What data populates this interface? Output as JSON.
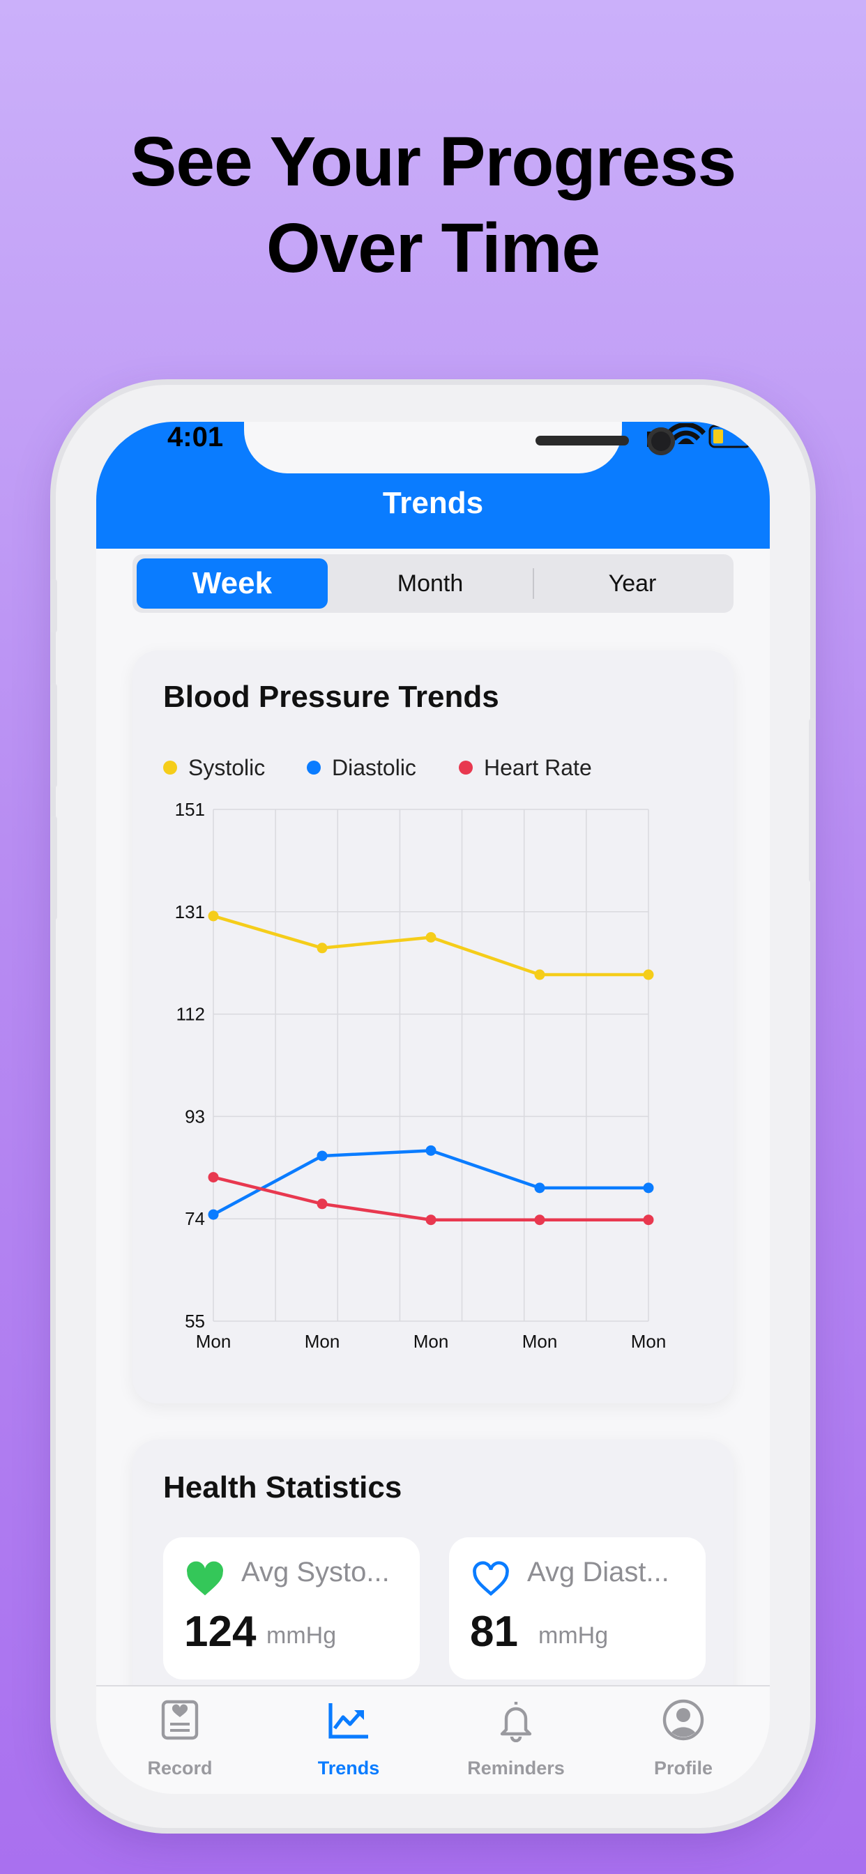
{
  "headline": {
    "line1": "See Your Progress",
    "line2": "Over Time"
  },
  "status_bar": {
    "time": "4:01"
  },
  "nav": {
    "title": "Trends"
  },
  "segmented": {
    "options": [
      "Week",
      "Month",
      "Year"
    ],
    "selected": "Week"
  },
  "trend_card": {
    "title": "Blood Pressure Trends",
    "legend": [
      {
        "label": "Systolic",
        "color": "#f5cd1a"
      },
      {
        "label": "Diastolic",
        "color": "#0a7cff"
      },
      {
        "label": "Heart Rate",
        "color": "#e8384f"
      }
    ]
  },
  "chart_data": {
    "type": "line",
    "title": "Blood Pressure Trends",
    "xlabel": "",
    "ylabel": "",
    "categories": [
      "Mon",
      "Mon",
      "Mon",
      "Mon",
      "Mon"
    ],
    "ylim": [
      55,
      151
    ],
    "yticks": [
      "151",
      "131",
      "112",
      "93",
      "74",
      "55"
    ],
    "grid": true,
    "legend_position": "top-left",
    "series": [
      {
        "name": "Systolic",
        "color": "#f5cd1a",
        "values": [
          131,
          125,
          127,
          120,
          120
        ]
      },
      {
        "name": "Diastolic",
        "color": "#0a7cff",
        "values": [
          75,
          86,
          87,
          80,
          80
        ]
      },
      {
        "name": "Heart Rate",
        "color": "#e8384f",
        "values": [
          82,
          77,
          74,
          74,
          74
        ]
      }
    ]
  },
  "stats_card": {
    "title": "Health Statistics",
    "items": [
      {
        "label": "Avg Systo...",
        "value": "124",
        "unit": "mmHg",
        "icon": "heart-filled-icon",
        "icon_color": "#34c759"
      },
      {
        "label": "Avg Diast...",
        "value": "81",
        "unit": "mmHg",
        "icon": "heart-outline-icon",
        "icon_color": "#0a7cff"
      }
    ]
  },
  "tabbar": {
    "items": [
      {
        "label": "Record",
        "icon": "record-icon",
        "active": false
      },
      {
        "label": "Trends",
        "icon": "trends-icon",
        "active": true
      },
      {
        "label": "Reminders",
        "icon": "bell-icon",
        "active": false
      },
      {
        "label": "Profile",
        "icon": "profile-icon",
        "active": false
      }
    ]
  },
  "colors": {
    "accent": "#0a7cff",
    "inactive": "#9a9a9f"
  }
}
